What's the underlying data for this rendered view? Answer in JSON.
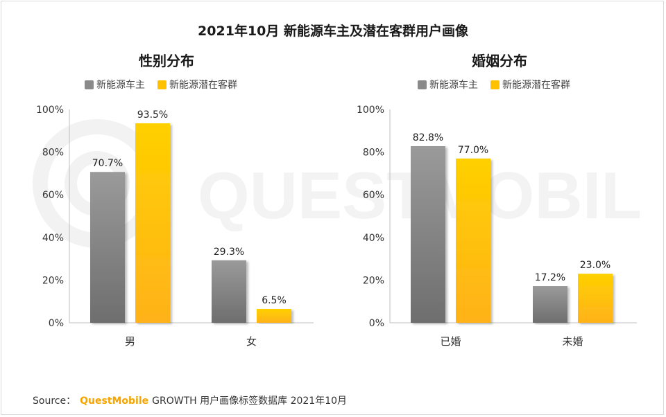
{
  "title": "2021年10月 新能源车主及潜在客群用户画像",
  "colors": {
    "owner": "#8a8a8a",
    "potential": "#ffc000"
  },
  "legend": {
    "owner": "新能源车主",
    "potential": "新能源潜在客群"
  },
  "watermark": "QUESTMOBILE",
  "chart_data": [
    {
      "type": "bar",
      "title": "性别分布",
      "categories": [
        "男",
        "女"
      ],
      "series": [
        {
          "name": "新能源车主",
          "values": [
            70.7,
            29.3
          ]
        },
        {
          "name": "新能源潜在客群",
          "values": [
            93.5,
            6.5
          ]
        }
      ],
      "value_labels": [
        [
          "70.7%",
          "29.3%"
        ],
        [
          "93.5%",
          "6.5%"
        ]
      ],
      "ylim": [
        0,
        100
      ],
      "yticks": [
        "0%",
        "20%",
        "40%",
        "60%",
        "80%",
        "100%"
      ],
      "legend": "top"
    },
    {
      "type": "bar",
      "title": "婚姻分布",
      "categories": [
        "已婚",
        "未婚"
      ],
      "series": [
        {
          "name": "新能源车主",
          "values": [
            82.8,
            17.2
          ]
        },
        {
          "name": "新能源潜在客群",
          "values": [
            77.0,
            23.0
          ]
        }
      ],
      "value_labels": [
        [
          "82.8%",
          "17.2%"
        ],
        [
          "77.0%",
          "23.0%"
        ]
      ],
      "ylim": [
        0,
        100
      ],
      "yticks": [
        "0%",
        "20%",
        "40%",
        "60%",
        "80%",
        "100%"
      ],
      "legend": "top"
    }
  ],
  "source": {
    "prefix": "Source：",
    "brand": "QuestMobile",
    "text": "GROWTH 用户画像标签数据库 2021年10月"
  }
}
